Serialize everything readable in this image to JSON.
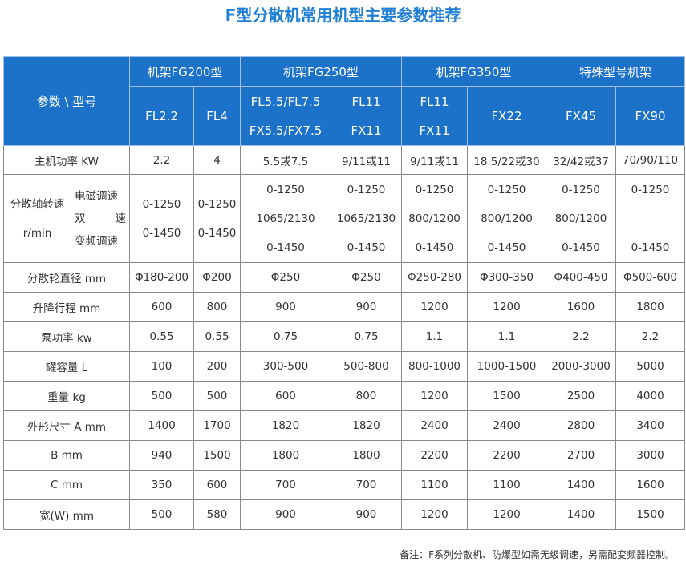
{
  "title": "F型分散机常用机型主要参数推荐",
  "header": {
    "param_corner": "参数 \\ 型号",
    "groups": [
      "机架FG200型",
      "机架FG250型",
      "机架FG350型",
      "特殊型号机架"
    ],
    "models": [
      [
        "FL2.2"
      ],
      [
        "FL4"
      ],
      [
        "FL5.5/FL7.5",
        "FX5.5/FX7.5"
      ],
      [
        "FL11",
        "FX11"
      ],
      [
        "FL11",
        "FX11"
      ],
      [
        "FX22"
      ],
      [
        "FX45"
      ],
      [
        "FX90"
      ]
    ]
  },
  "power": {
    "label": "主机功率 KW",
    "values": [
      "2.2",
      "4",
      "5.5或7.5",
      "9/11或11",
      "9/11或11",
      "18.5/22或30",
      "32/42或37",
      "70/90/110"
    ]
  },
  "speed": {
    "label_line1": "分散轴转速",
    "label_line2": "r/min",
    "modes": [
      "电磁调速",
      "双速",
      "变频调速"
    ],
    "mode_double_chars": [
      "双",
      "速"
    ],
    "values": [
      [
        "0-1250",
        "0-1450"
      ],
      [
        "0-1250",
        "0-1450"
      ],
      [
        "0-1250",
        "1065/2130",
        "0-1450"
      ],
      [
        "0-1250",
        "1065/2130",
        "0-1450"
      ],
      [
        "0-1250",
        "800/1200",
        "0-1450"
      ],
      [
        "0-1250",
        "800/1200",
        "0-1450"
      ],
      [
        "0-1250",
        "800/1200",
        "0-1450"
      ],
      [
        "0-1250",
        "",
        "0-1450"
      ]
    ]
  },
  "rows": [
    {
      "label": "分散轮直径 mm",
      "values": [
        "Φ180-200",
        "Φ200",
        "Φ250",
        "Φ250",
        "Φ250-280",
        "Φ300-350",
        "Φ400-450",
        "Φ500-600"
      ]
    },
    {
      "label": "升降行程 mm",
      "values": [
        "600",
        "800",
        "900",
        "900",
        "1200",
        "1200",
        "1600",
        "1800"
      ]
    },
    {
      "label": "泵功率 kw",
      "values": [
        "0.55",
        "0.55",
        "0.75",
        "0.75",
        "1.1",
        "1.1",
        "2.2",
        "2.2"
      ]
    },
    {
      "label": "罐容量 L",
      "values": [
        "100",
        "200",
        "300-500",
        "500-800",
        "800-1000",
        "1000-1500",
        "2000-3000",
        "5000"
      ]
    },
    {
      "label": "重量 kg",
      "values": [
        "500",
        "500",
        "600",
        "800",
        "1200",
        "1500",
        "2500",
        "4000"
      ]
    },
    {
      "label": "外形尺寸 A mm",
      "values": [
        "1400",
        "1700",
        "1820",
        "1820",
        "2400",
        "2400",
        "2800",
        "3400"
      ]
    },
    {
      "label": "B mm",
      "values": [
        "940",
        "1500",
        "1800",
        "1800",
        "2200",
        "2200",
        "2700",
        "3000"
      ]
    },
    {
      "label": "C mm",
      "values": [
        "350",
        "600",
        "700",
        "700",
        "1100",
        "1100",
        "1400",
        "1600"
      ]
    },
    {
      "label": "宽(W) mm",
      "values": [
        "500",
        "580",
        "900",
        "900",
        "1200",
        "1200",
        "1400",
        "1500"
      ]
    }
  ],
  "note": "备注：F系列分散机、防爆型如需无级调速，另需配变频器控制。"
}
